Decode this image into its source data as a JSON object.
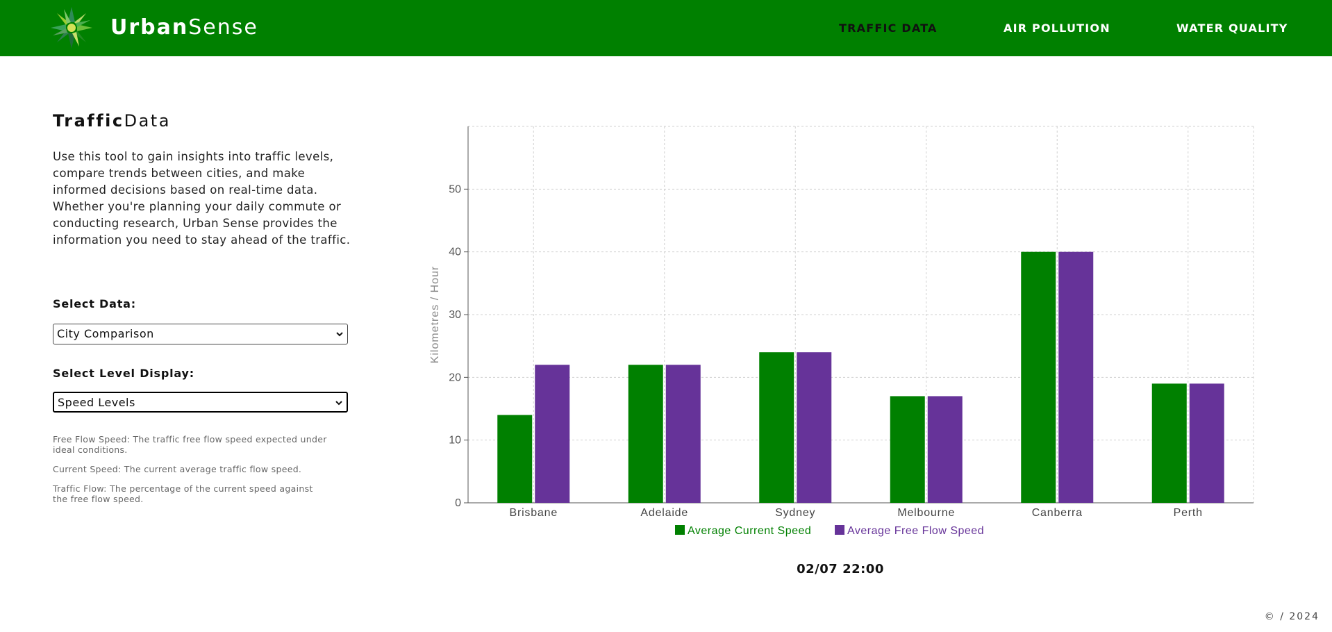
{
  "brand": {
    "name_bold": "Urban",
    "name_light": "Sense"
  },
  "nav": {
    "items": [
      {
        "label": "TRAFFIC DATA",
        "active": true
      },
      {
        "label": "AIR POLLUTION",
        "active": false
      },
      {
        "label": "WATER QUALITY",
        "active": false
      }
    ]
  },
  "sidebar": {
    "title_bold": "Traffic",
    "title_light": "Data",
    "intro": "Use this tool to gain insights into traffic levels, compare trends between cities, and make informed decisions based on real-time data. Whether you're planning your daily commute or conducting research, Urban Sense provides the information you need to stay ahead of the traffic.",
    "select_data": {
      "label": "Select Data:",
      "value": "City Comparison"
    },
    "select_level": {
      "label": "Select Level Display:",
      "value": "Speed Levels"
    },
    "notes": [
      "Free Flow Speed: The traffic free flow speed expected under ideal conditions.",
      "Current Speed: The current average traffic flow speed.",
      "Traffic Flow: The percentage of the current speed against the free flow speed."
    ]
  },
  "timestamp": "02/07 22:00",
  "footer": "© / 2024",
  "colors": {
    "header": "#008000",
    "current": "#008000",
    "freeflow": "#663399"
  },
  "chart_data": {
    "type": "bar",
    "categories": [
      "Brisbane",
      "Adelaide",
      "Sydney",
      "Melbourne",
      "Canberra",
      "Perth"
    ],
    "series": [
      {
        "name": "Average Current Speed",
        "values": [
          14,
          22,
          24,
          17,
          40,
          19
        ]
      },
      {
        "name": "Average Free Flow Speed",
        "values": [
          22,
          22,
          24,
          17,
          40,
          19
        ]
      }
    ],
    "ylabel": "Kilometres / Hour",
    "xlabel": "",
    "yticks": [
      0,
      10,
      20,
      30,
      40,
      50
    ],
    "ylim": [
      0,
      60
    ],
    "grid": true,
    "legend": "bottom"
  }
}
